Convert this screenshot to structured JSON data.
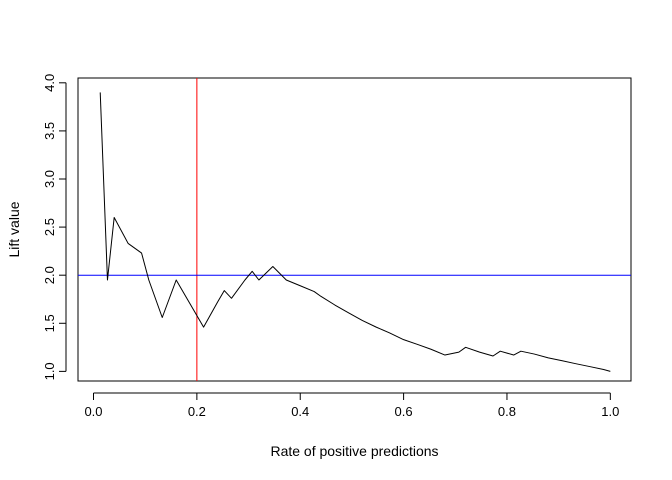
{
  "chart_data": {
    "type": "line",
    "title": "",
    "xlabel": "Rate of positive predictions",
    "ylabel": "Lift value",
    "xlim": [
      -0.03,
      1.04
    ],
    "ylim": [
      0.9,
      4.05
    ],
    "x_ticks": [
      0,
      0.2,
      0.4,
      0.6,
      0.8,
      1
    ],
    "x_tick_labels": [
      "0.0",
      "0.2",
      "0.4",
      "0.6",
      "0.8",
      "1.0"
    ],
    "y_ticks": [
      1,
      1.5,
      2,
      2.5,
      3,
      3.5,
      4
    ],
    "y_tick_labels": [
      "1.0",
      "1.5",
      "2.0",
      "2.5",
      "3.0",
      "3.5",
      "4.0"
    ],
    "grid": false,
    "legend": "none",
    "series": [
      {
        "color": "#000000",
        "x": [
          0.013,
          0.027,
          0.04,
          0.067,
          0.093,
          0.107,
          0.133,
          0.16,
          0.187,
          0.213,
          0.24,
          0.253,
          0.267,
          0.293,
          0.307,
          0.32,
          0.347,
          0.36,
          0.373,
          0.4,
          0.427,
          0.44,
          0.467,
          0.493,
          0.52,
          0.547,
          0.573,
          0.6,
          0.627,
          0.653,
          0.68,
          0.707,
          0.72,
          0.747,
          0.773,
          0.787,
          0.813,
          0.827,
          0.853,
          0.88,
          0.907,
          0.933,
          0.96,
          0.987,
          1.0
        ],
        "y": [
          3.9,
          1.95,
          2.6,
          2.33,
          2.23,
          1.95,
          1.56,
          1.95,
          1.7,
          1.46,
          1.72,
          1.84,
          1.76,
          1.95,
          2.04,
          1.95,
          2.09,
          2.02,
          1.95,
          1.89,
          1.83,
          1.78,
          1.69,
          1.61,
          1.53,
          1.46,
          1.4,
          1.33,
          1.28,
          1.23,
          1.17,
          1.2,
          1.25,
          1.2,
          1.16,
          1.21,
          1.17,
          1.21,
          1.18,
          1.14,
          1.11,
          1.08,
          1.05,
          1.02,
          1.0
        ]
      }
    ],
    "reference_lines": [
      {
        "orientation": "vertical",
        "value": 0.2,
        "color": "#ff0000"
      },
      {
        "orientation": "horizontal",
        "value": 2.0,
        "color": "#0000ff"
      }
    ]
  }
}
